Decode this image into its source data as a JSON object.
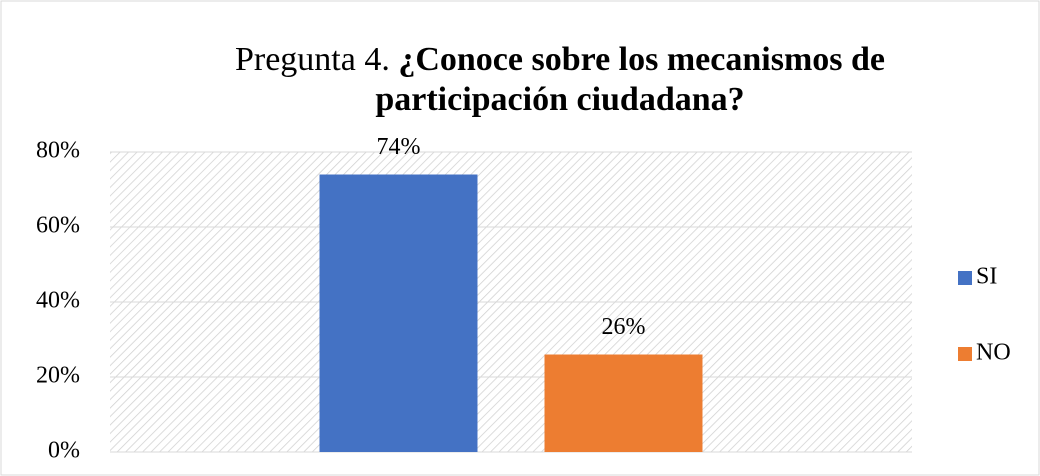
{
  "chart_data": {
    "type": "bar",
    "title": [
      "Pregunta 4.",
      "¿Conoce sobre los mecanismos de",
      "participación ciudadana?"
    ],
    "categories": [
      null
    ],
    "series": [
      {
        "name": "SI",
        "color": "#4472c4",
        "values": [
          74
        ],
        "value_labels": [
          "74%"
        ]
      },
      {
        "name": "NO",
        "color": "#ed7d31",
        "values": [
          26
        ],
        "value_labels": [
          "26%"
        ]
      }
    ],
    "ylim": [
      0,
      80
    ],
    "yticks": [
      {
        "value": 0,
        "label": "0%"
      },
      {
        "value": 20,
        "label": "20%"
      },
      {
        "value": 40,
        "label": "40%"
      },
      {
        "value": 60,
        "label": "60%"
      },
      {
        "value": 80,
        "label": "80%"
      }
    ],
    "grid": true,
    "legend": "right"
  }
}
